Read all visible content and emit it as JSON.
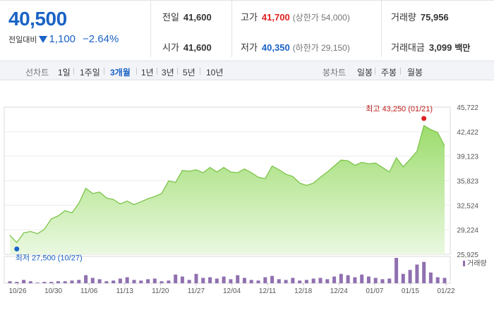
{
  "quote": {
    "price": "40,500",
    "change_label": "전일대비",
    "change_value": "1,100",
    "change_pct": "−2.64%",
    "prev_label": "전일",
    "prev": "41,600",
    "open_label": "시가",
    "open": "41,600",
    "high_label": "고가",
    "high": "41,700",
    "upper_limit": "(상한가 54,000)",
    "low_label": "저가",
    "low": "40,350",
    "lower_limit": "(하한가 29,150)",
    "volume_label": "거래량",
    "volume": "75,956",
    "amount_label": "거래대금",
    "amount": "3,099",
    "amount_unit": "백만"
  },
  "toolbar": {
    "line_label": "선차트",
    "periods": [
      "1일",
      "1주일",
      "3개월",
      "1년",
      "3년",
      "5년",
      "10년"
    ],
    "active_period": "3개월",
    "candle_label": "봉차트",
    "candles": [
      "일봉",
      "주봉",
      "월봉"
    ]
  },
  "colors": {
    "rise": "#e02020",
    "fall": "#1a63c6",
    "area_fill": "#a8e07a",
    "area_line": "#7cc44a",
    "volume_bar": "#9070b0"
  },
  "chart_data": {
    "type": "area",
    "y_ticks": [
      "45,722",
      "42,422",
      "39,123",
      "35,823",
      "32,524",
      "29,224",
      "25,925"
    ],
    "ylim": [
      25925,
      45722
    ],
    "x_ticks": [
      "10/26",
      "10/30",
      "11/06",
      "11/13",
      "11/20",
      "11/27",
      "12/04",
      "12/11",
      "12/18",
      "12/24",
      "01/07",
      "01/15",
      "01/22"
    ],
    "max_label": "최고 43,250 (01/21)",
    "min_label": "최저 27,500 (10/27)",
    "volume_legend": "거래량",
    "prices": [
      28500,
      27500,
      28800,
      29000,
      28700,
      29300,
      30700,
      31100,
      31800,
      31500,
      32800,
      34800,
      34100,
      34300,
      33500,
      33300,
      32700,
      33100,
      32600,
      33000,
      33400,
      33700,
      34100,
      35800,
      35600,
      37200,
      37100,
      37300,
      36900,
      37600,
      37000,
      37600,
      37000,
      36900,
      37400,
      36900,
      36300,
      36100,
      37800,
      37300,
      36700,
      36400,
      35500,
      35200,
      35500,
      36300,
      37000,
      37800,
      38600,
      38500,
      37900,
      38300,
      38100,
      38200,
      37600,
      37000,
      38900,
      37700,
      38700,
      39800,
      43250,
      42700,
      42300,
      40500
    ],
    "volumes": [
      3,
      2,
      5,
      3,
      1,
      2,
      2,
      3,
      3,
      4,
      5,
      12,
      8,
      6,
      3,
      4,
      7,
      9,
      5,
      4,
      6,
      7,
      3,
      4,
      13,
      10,
      5,
      14,
      8,
      9,
      7,
      10,
      6,
      12,
      8,
      5,
      4,
      9,
      11,
      6,
      5,
      8,
      4,
      5,
      7,
      8,
      6,
      10,
      14,
      12,
      9,
      13,
      10,
      8,
      6,
      7,
      38,
      14,
      20,
      28,
      32,
      16,
      9,
      8
    ]
  }
}
